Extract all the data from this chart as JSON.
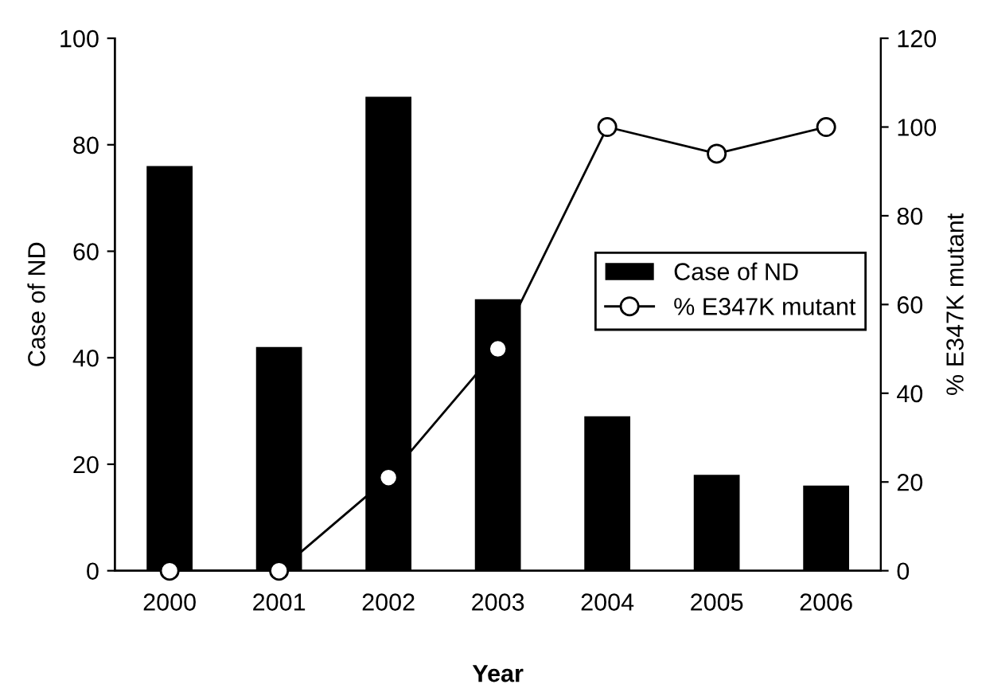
{
  "chart_data": {
    "type": "bar",
    "xlabel": "Year",
    "ylabel": "Case of ND",
    "y2label": "% E347K mutant",
    "categories": [
      "2000",
      "2001",
      "2002",
      "2003",
      "2004",
      "2005",
      "2006"
    ],
    "series": [
      {
        "name": "Case of ND",
        "color": "#000000",
        "values": [
          76,
          42,
          89,
          51,
          29,
          18,
          16
        ]
      },
      {
        "name": "% E347K mutant",
        "type": "line",
        "axis": "y2",
        "color": "#000000",
        "marker": "circle",
        "values": [
          0,
          0,
          21,
          50,
          100,
          94,
          100
        ]
      }
    ],
    "ylim": [
      0,
      100
    ],
    "yticks": [
      0,
      20,
      40,
      60,
      80,
      100
    ],
    "y2lim": [
      0,
      120
    ],
    "y2ticks": [
      0,
      20,
      40,
      60,
      80,
      100,
      120
    ],
    "grid": false,
    "legend": "right"
  }
}
